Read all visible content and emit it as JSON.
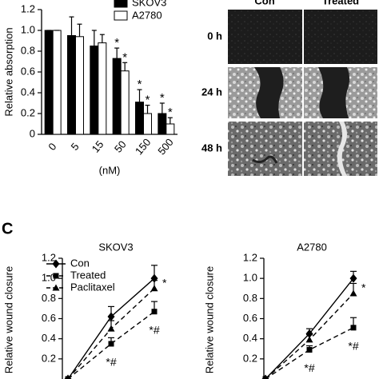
{
  "panel_label": "C",
  "images": {
    "columns": [
      "Con",
      "Treated"
    ],
    "rows": [
      "0 h",
      "24 h",
      "48 h"
    ]
  },
  "chart_data": [
    {
      "type": "bar",
      "y_label": "Relative absorption",
      "x_label": "(nM)",
      "categories": [
        "0",
        "5",
        "15",
        "50",
        "150",
        "500"
      ],
      "ylim": [
        0,
        1.2
      ],
      "yticks": [
        0,
        0.2,
        0.4,
        0.6,
        0.8,
        {
          "value": 1,
          "label": "1.0"
        },
        1.2
      ],
      "legend": "upper right",
      "series": [
        {
          "name": "SKOV3",
          "color": "#000000",
          "values": [
            1.0,
            0.95,
            0.85,
            0.73,
            0.31,
            0.2
          ],
          "errors": [
            0,
            0.18,
            0.15,
            0.1,
            0.12,
            0.1
          ],
          "significance": [
            null,
            null,
            null,
            "*",
            "*",
            "*"
          ]
        },
        {
          "name": "A2780",
          "color": "#ffffff",
          "values": [
            1.0,
            0.94,
            0.88,
            0.61,
            0.2,
            0.1
          ],
          "errors": [
            0,
            0.12,
            0.08,
            0.08,
            0.08,
            0.06
          ],
          "significance": [
            null,
            null,
            null,
            "*",
            "*",
            "*"
          ]
        }
      ]
    },
    {
      "type": "line",
      "title": "SKOV3",
      "y_label": "Relative wound closure",
      "categories": [
        null,
        null,
        null
      ],
      "ylim": [
        0,
        1.2
      ],
      "yticks": [
        0.2,
        0.4,
        0.6,
        0.8,
        {
          "value": 1,
          "label": "1.0"
        },
        1.2
      ],
      "legend": "upper left",
      "series": [
        {
          "name": "Con",
          "color": "#000000",
          "marker": "diamond",
          "linestyle": "solid",
          "values": [
            0,
            0.62,
            1.0
          ],
          "errors": [
            0,
            0.1,
            0.13
          ],
          "significance": [
            null,
            null,
            null
          ]
        },
        {
          "name": "Treated",
          "color": "#000000",
          "marker": "square",
          "linestyle": "dashed",
          "values": [
            0,
            0.35,
            0.67
          ],
          "errors": [
            0,
            0.06,
            0.1
          ],
          "significance": [
            null,
            "*#",
            "*#"
          ]
        },
        {
          "name": "Paclitaxel",
          "color": "#000000",
          "marker": "triangle",
          "linestyle": "dashed",
          "values": [
            0,
            0.5,
            0.9
          ],
          "errors": [
            0,
            0.08,
            0.08
          ],
          "significance": [
            null,
            null,
            "*"
          ]
        }
      ]
    },
    {
      "type": "line",
      "title": "A2780",
      "y_label": "Relative wound closure",
      "categories": [
        null,
        null,
        null
      ],
      "ylim": [
        0,
        1.2
      ],
      "yticks": [
        0.2,
        0.4,
        0.6,
        0.8,
        {
          "value": 1,
          "label": "1.0"
        },
        1.2
      ],
      "legend": null,
      "series": [
        {
          "name": "Con",
          "color": "#000000",
          "marker": "diamond",
          "linestyle": "solid",
          "values": [
            0,
            0.45,
            1.0
          ],
          "errors": [
            0,
            0.05,
            0.07
          ],
          "significance": [
            null,
            null,
            null
          ]
        },
        {
          "name": "Treated",
          "color": "#000000",
          "marker": "square",
          "linestyle": "dashed",
          "values": [
            0,
            0.29,
            0.51
          ],
          "errors": [
            0,
            0.04,
            0.1
          ],
          "significance": [
            null,
            "*#",
            "*#"
          ]
        },
        {
          "name": "Paclitaxel",
          "color": "#000000",
          "marker": "triangle",
          "linestyle": "dashed",
          "values": [
            0,
            0.39,
            0.85
          ],
          "errors": [
            0,
            0.05,
            0.1
          ],
          "significance": [
            null,
            null,
            "*"
          ]
        }
      ]
    }
  ]
}
